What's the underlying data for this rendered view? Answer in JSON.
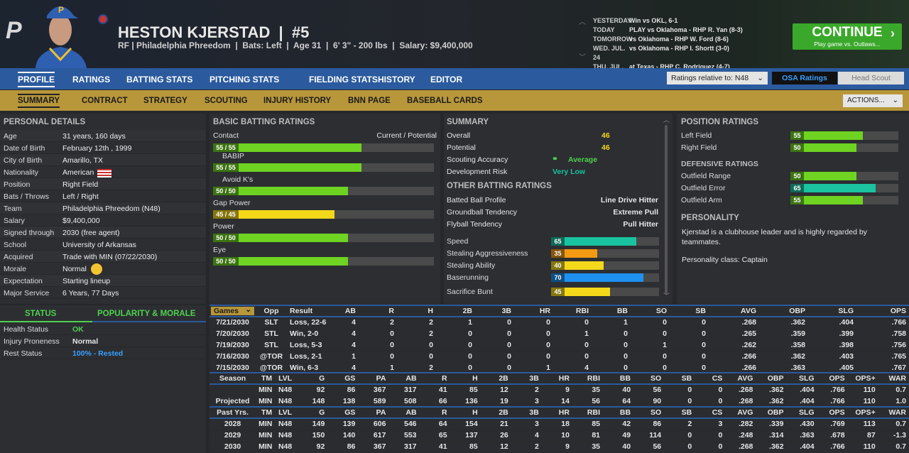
{
  "header": {
    "logo": "P",
    "name": "HESTON KJERSTAD  |  #5",
    "subtitle": "RF | Philadelphia Phreedom  |  Bats: Left  |  Age 31  |  6' 3\" - 200 lbs  |  Salary: $9,400,000"
  },
  "schedule": [
    {
      "day": "YESTERDAY",
      "game": "Win vs OKL, 6-1"
    },
    {
      "day": "TODAY",
      "game": "PLAY vs Oklahoma - RHP R. Yan (8-3)"
    },
    {
      "day": "TOMORROW",
      "game": "vs Oklahoma - RHP W. Ford (8-6)"
    },
    {
      "day": "WED. JUL. 24",
      "game": "vs Oklahoma - RHP I. Shortt (3-0)"
    },
    {
      "day": "THU. JUL. 25",
      "game": "at Texas - RHP C. Rodriguez (4-7)"
    }
  ],
  "continue": {
    "label": "CONTINUE",
    "sub": "Play game vs. Outlaws...",
    "chevron": "›"
  },
  "nav": {
    "tabs": [
      "PROFILE",
      "RATINGS",
      "BATTING STATS",
      "PITCHING STATS",
      "FIELDING STATS",
      "HISTORY",
      "EDITOR"
    ],
    "ratings_relative": "Ratings relative to: N48",
    "osa": "OSA Ratings",
    "head_scout": "Head Scout"
  },
  "subnav": {
    "tabs": [
      "SUMMARY",
      "CONTRACT",
      "STRATEGY",
      "SCOUTING",
      "INJURY HISTORY",
      "BNN PAGE",
      "BASEBALL CARDS"
    ],
    "actions": "ACTIONS..."
  },
  "personal": {
    "title": "PERSONAL DETAILS",
    "rows": [
      [
        "Age",
        "31 years, 160 days"
      ],
      [
        "Date of Birth",
        "February 12th , 1999"
      ],
      [
        "City of Birth",
        "Amarillo, TX"
      ],
      [
        "Nationality",
        "American"
      ],
      [
        "Position",
        "Right Field"
      ],
      [
        "Bats / Throws",
        "Left / Right"
      ],
      [
        "Team",
        "Philadelphia Phreedom (N48)"
      ],
      [
        "Salary",
        "$9,400,000"
      ],
      [
        "Signed through",
        "2030 (free agent)"
      ],
      [
        "School",
        "University of Arkansas"
      ],
      [
        "Acquired",
        "Trade with MIN (07/22/2030)"
      ],
      [
        "Morale",
        "Normal"
      ],
      [
        "Expectation",
        "Starting lineup"
      ],
      [
        "Major Service",
        "6 Years, 77 Days"
      ]
    ]
  },
  "status": {
    "tab1": "STATUS",
    "tab2": "POPULARITY & MORALE",
    "rows": [
      [
        "Health Status",
        "OK",
        "#4fd14f"
      ],
      [
        "Injury Proneness",
        "Normal",
        "#e6e6e6"
      ],
      [
        "Rest Status",
        "100% - Rested",
        "#3aa0ff"
      ]
    ]
  },
  "batting": {
    "title": "BASIC BATTING RATINGS",
    "contact": "Contact",
    "cur_pot": "Current / Potential",
    "bars": [
      {
        "label": "Contact",
        "text": "55 / 55",
        "value": 55,
        "color": "#6ed321",
        "indent": false
      },
      {
        "label": "BABIP",
        "text": "55 / 55",
        "value": 55,
        "color": "#6ed321",
        "indent": true
      },
      {
        "label": "Avoid K's",
        "text": "50 / 50",
        "value": 50,
        "color": "#6ed321",
        "indent": true
      },
      {
        "label": "Gap Power",
        "text": "45 / 45",
        "value": 45,
        "color": "#f4d81a",
        "indent": false
      },
      {
        "label": "Power",
        "text": "50 / 50",
        "value": 50,
        "color": "#6ed321",
        "indent": false
      },
      {
        "label": "Eye",
        "text": "50 / 50",
        "value": 50,
        "color": "#6ed321",
        "indent": false
      }
    ]
  },
  "summary": {
    "title": "SUMMARY",
    "overall_label": "Overall",
    "overall": "46",
    "potential_label": "Potential",
    "potential": "46",
    "scouting_label": "Scouting Accuracy",
    "scouting": "Average",
    "risk_label": "Development Risk",
    "risk": "Very Low",
    "other_title": "OTHER BATTING RATINGS",
    "other": [
      [
        "Batted Ball Profile",
        "Line Drive Hitter"
      ],
      [
        "Groundball Tendency",
        "Extreme Pull"
      ],
      [
        "Flyball Tendency",
        "Pull Hitter"
      ]
    ],
    "bars": [
      {
        "label": "Speed",
        "value": 65,
        "color": "#19c3a0"
      },
      {
        "label": "Stealing Aggressiveness",
        "value": 35,
        "color": "#f39a12"
      },
      {
        "label": "Stealing Ability",
        "value": 40,
        "color": "#f4d81a"
      },
      {
        "label": "Baserunning",
        "value": 70,
        "color": "#1e90f0"
      },
      {
        "label": "Sacrifice Bunt",
        "value": 45,
        "color": "#f4d81a"
      }
    ]
  },
  "position": {
    "title": "POSITION RATINGS",
    "bars": [
      {
        "label": "Left Field",
        "value": 55,
        "color": "#6ed321"
      },
      {
        "label": "Right Field",
        "value": 50,
        "color": "#6ed321"
      }
    ],
    "def_title": "DEFENSIVE RATINGS",
    "def": [
      {
        "label": "Outfield Range",
        "value": 50,
        "color": "#6ed321"
      },
      {
        "label": "Outfield Error",
        "value": 65,
        "color": "#19c3a0"
      },
      {
        "label": "Outfield Arm",
        "value": 55,
        "color": "#6ed321"
      }
    ],
    "pers_title": "PERSONALITY",
    "pers_text": "Kjerstad is a clubhouse leader and is highly regarded by teammates.",
    "pers_class": "Personality class: Captain"
  },
  "gamelog": {
    "headers": [
      "Games",
      "Opp",
      "Result",
      "AB",
      "R",
      "H",
      "2B",
      "3B",
      "HR",
      "RBI",
      "BB",
      "SO",
      "SB",
      "AVG",
      "OBP",
      "SLG",
      "OPS"
    ],
    "rows": [
      [
        "7/21/2030",
        "SLT",
        "Loss, 22-6",
        "4",
        "2",
        "2",
        "1",
        "0",
        "0",
        "0",
        "1",
        "0",
        "0",
        ".268",
        ".362",
        ".404",
        ".766"
      ],
      [
        "7/20/2030",
        "STL",
        "Win, 2-0",
        "4",
        "0",
        "2",
        "0",
        "0",
        "0",
        "1",
        "0",
        "0",
        "0",
        ".265",
        ".359",
        ".399",
        ".758"
      ],
      [
        "7/19/2030",
        "STL",
        "Loss, 5-3",
        "4",
        "0",
        "0",
        "0",
        "0",
        "0",
        "0",
        "0",
        "1",
        "0",
        ".262",
        ".358",
        ".398",
        ".756"
      ],
      [
        "7/16/2030",
        "@TOR",
        "Loss, 2-1",
        "1",
        "0",
        "0",
        "0",
        "0",
        "0",
        "0",
        "0",
        "0",
        "0",
        ".266",
        ".362",
        ".403",
        ".765"
      ],
      [
        "7/15/2030",
        "@TOR",
        "Win, 6-3",
        "4",
        "1",
        "2",
        "0",
        "0",
        "1",
        "4",
        "0",
        "0",
        "0",
        ".266",
        ".363",
        ".405",
        ".767"
      ]
    ]
  },
  "season": {
    "headers": [
      "Season",
      "TM",
      "LVL",
      "G",
      "GS",
      "PA",
      "AB",
      "R",
      "H",
      "2B",
      "3B",
      "HR",
      "RBI",
      "BB",
      "SO",
      "SB",
      "CS",
      "AVG",
      "OBP",
      "SLG",
      "OPS",
      "OPS+",
      "WAR"
    ],
    "rows": [
      [
        "",
        "MIN",
        "N48",
        "92",
        "86",
        "367",
        "317",
        "41",
        "85",
        "12",
        "2",
        "9",
        "35",
        "40",
        "56",
        "0",
        "0",
        ".268",
        ".362",
        ".404",
        ".766",
        "110",
        "0.7"
      ],
      [
        "Projected",
        "MIN",
        "N48",
        "148",
        "138",
        "589",
        "508",
        "66",
        "136",
        "19",
        "3",
        "14",
        "56",
        "64",
        "90",
        "0",
        "0",
        ".268",
        ".362",
        ".404",
        ".766",
        "110",
        "1.0"
      ]
    ]
  },
  "past": {
    "headers": [
      "Past Yrs.",
      "TM",
      "LVL",
      "G",
      "GS",
      "PA",
      "AB",
      "R",
      "H",
      "2B",
      "3B",
      "HR",
      "RBI",
      "BB",
      "SO",
      "SB",
      "CS",
      "AVG",
      "OBP",
      "SLG",
      "OPS",
      "OPS+",
      "WAR"
    ],
    "rows": [
      [
        "2028",
        "MIN",
        "N48",
        "149",
        "139",
        "606",
        "546",
        "64",
        "154",
        "21",
        "3",
        "18",
        "85",
        "42",
        "86",
        "2",
        "3",
        ".282",
        ".339",
        ".430",
        ".769",
        "113",
        "0.7"
      ],
      [
        "2029",
        "MIN",
        "N48",
        "150",
        "140",
        "617",
        "553",
        "65",
        "137",
        "26",
        "4",
        "10",
        "81",
        "49",
        "114",
        "0",
        "0",
        ".248",
        ".314",
        ".363",
        ".678",
        "87",
        "-1.3"
      ],
      [
        "2030",
        "MIN",
        "N48",
        "92",
        "86",
        "367",
        "317",
        "41",
        "85",
        "12",
        "2",
        "9",
        "35",
        "40",
        "56",
        "0",
        "0",
        ".268",
        ".362",
        ".404",
        ".766",
        "110",
        "0.7"
      ]
    ]
  }
}
